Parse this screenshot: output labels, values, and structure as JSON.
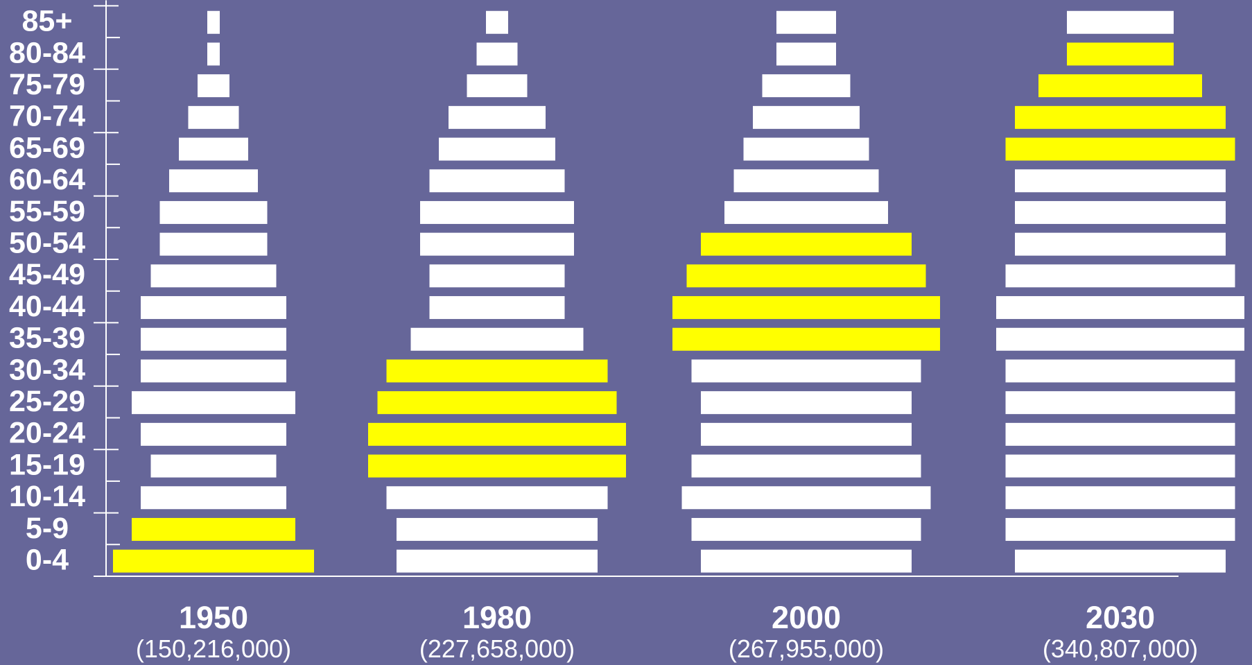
{
  "colors": {
    "background": "#666699",
    "bar_default": "#ffffff",
    "bar_highlight": "#ffff00",
    "axis": "#ffffff"
  },
  "chart_data": {
    "type": "bar",
    "orientation": "horizontal",
    "categories": [
      "0-4",
      "5-9",
      "10-14",
      "15-19",
      "20-24",
      "25-29",
      "30-34",
      "35-39",
      "40-44",
      "45-49",
      "50-54",
      "55-59",
      "60-64",
      "65-69",
      "70-74",
      "75-79",
      "80-84",
      "85+"
    ],
    "series": [
      {
        "name": "1950",
        "total": "(150,216,000)",
        "values": [
          290,
          236,
          210,
          181,
          210,
          236,
          210,
          210,
          210,
          181,
          155,
          155,
          128,
          100,
          73,
          46,
          18,
          18
        ],
        "highlight": [
          0,
          1
        ]
      },
      {
        "name": "1980",
        "total": "(227,658,000)",
        "values": [
          290,
          290,
          319,
          372,
          372,
          345,
          319,
          249,
          195,
          195,
          222,
          222,
          195,
          168,
          140,
          87,
          59,
          32
        ],
        "highlight": [
          3,
          4,
          5,
          6
        ]
      },
      {
        "name": "2000",
        "total": "(267,955,000)",
        "values": [
          304,
          331,
          359,
          331,
          304,
          304,
          331,
          386,
          386,
          345,
          304,
          236,
          209,
          181,
          154,
          127,
          86,
          86
        ],
        "highlight": [
          7,
          8,
          9,
          10
        ]
      },
      {
        "name": "2030",
        "total": "(340,807,000)",
        "values": [
          304,
          331,
          331,
          331,
          331,
          331,
          331,
          358,
          358,
          331,
          304,
          304,
          304,
          331,
          304,
          236,
          154,
          154
        ],
        "highlight": [
          13,
          14,
          15,
          16
        ]
      }
    ]
  }
}
